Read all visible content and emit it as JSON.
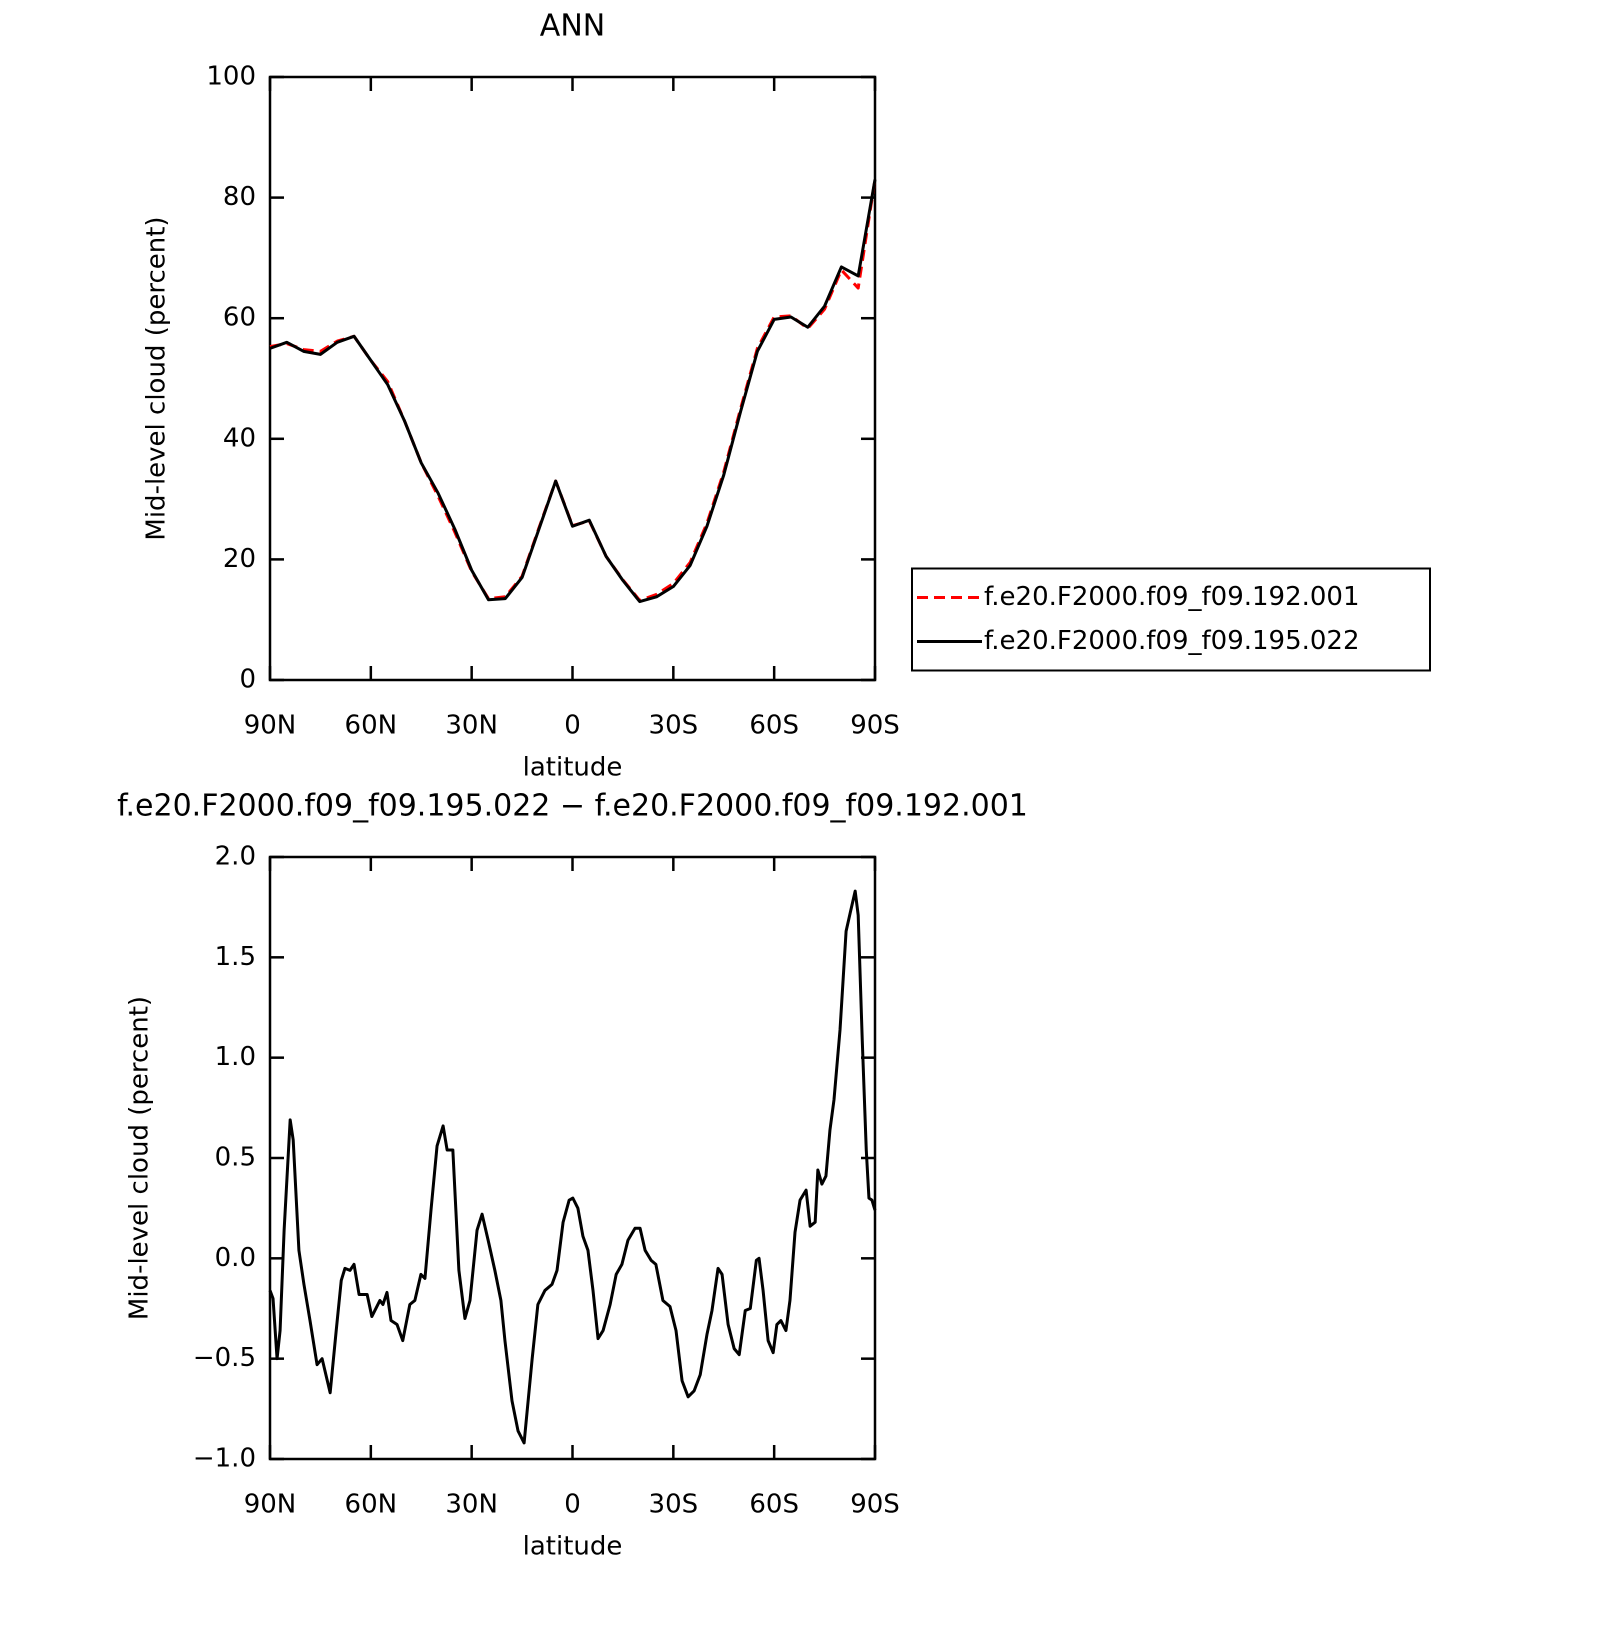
{
  "chart_data": [
    {
      "type": "line",
      "title": "ANN",
      "xlabel": "latitude",
      "ylabel": "Mid-level cloud (percent)",
      "x": [
        90,
        85,
        80,
        75,
        70,
        65,
        60,
        55,
        50,
        45,
        40,
        35,
        30,
        25,
        20,
        15,
        10,
        5,
        0,
        -5,
        -10,
        -15,
        -20,
        -25,
        -30,
        -35,
        -40,
        -45,
        -50,
        -55,
        -60,
        -65,
        -70,
        -75,
        -80,
        -85,
        -90
      ],
      "series": [
        {
          "name": "f.e20.F2000.f09_f09.192.001",
          "color": "#ff0000",
          "dashed": true,
          "values": [
            55.3,
            55.8,
            54.8,
            54.5,
            56.2,
            57,
            53,
            49.5,
            43,
            36,
            30.5,
            24.5,
            18,
            13.5,
            13.8,
            17.2,
            25.2,
            33,
            25.6,
            26.4,
            20.5,
            16.6,
            13.2,
            14.2,
            16,
            19.5,
            26,
            34.5,
            45,
            55,
            60.2,
            60.4,
            58.3,
            61.5,
            68,
            65,
            83
          ]
        },
        {
          "name": "f.e20.F2000.f09_f09.195.022",
          "color": "#000000",
          "dashed": false,
          "values": [
            55,
            56,
            54.5,
            54,
            56,
            57,
            53,
            49,
            43,
            36,
            31,
            25,
            18.2,
            13.3,
            13.5,
            17,
            25,
            33,
            25.5,
            26.5,
            20.5,
            16.5,
            13,
            13.8,
            15.5,
            19,
            25.5,
            34,
            44.5,
            54.5,
            59.8,
            60.2,
            58.5,
            62,
            68.5,
            67,
            83
          ]
        }
      ],
      "xlim": [
        90,
        -90
      ],
      "xticks": [
        {
          "value": 90,
          "label": "90N"
        },
        {
          "value": 60,
          "label": "60N"
        },
        {
          "value": 30,
          "label": "30N"
        },
        0,
        {
          "value": -30,
          "label": "30S"
        },
        {
          "value": -60,
          "label": "60S"
        },
        {
          "value": -90,
          "label": "90S"
        }
      ],
      "ylim": [
        0,
        100
      ],
      "yticks": [
        0,
        20,
        40,
        60,
        80,
        100
      ],
      "grid": false,
      "legend": "right"
    },
    {
      "type": "line",
      "title": "f.e20.F2000.f09_f09.195.022 − f.e20.F2000.f09_f09.192.001",
      "xlabel": "latitude",
      "ylabel": "Mid-level cloud (percent)",
      "x": [
        90,
        89.1,
        87.9,
        87.0,
        85.8,
        84.0,
        83.1,
        81.4,
        79.9,
        78.1,
        76.0,
        74.5,
        72.1,
        70.3,
        68.8,
        67.7,
        66.2,
        65.0,
        63.5,
        61.1,
        59.7,
        57.3,
        56.4,
        55.2,
        54.0,
        52.2,
        50.5,
        48.4,
        46.9,
        45.1,
        43.9,
        42.1,
        40.3,
        38.5,
        37.3,
        35.6,
        33.8,
        32.0,
        30.5,
        28.4,
        26.9,
        25.1,
        23.1,
        21.3,
        20.1,
        18.0,
        16.2,
        14.4,
        12.0,
        10.3,
        8.2,
        6.1,
        4.6,
        2.8,
        1.0,
        -0.1,
        -1.6,
        -3.1,
        -4.6,
        -6.1,
        -7.6,
        -9.1,
        -11.2,
        -13.0,
        -14.7,
        -16.5,
        -18.6,
        -20.1,
        -21.6,
        -23.4,
        -24.8,
        -26.9,
        -29.0,
        -30.8,
        -32.6,
        -34.4,
        -36.2,
        -38.0,
        -40.0,
        -41.5,
        -43.3,
        -44.5,
        -46.3,
        -48.1,
        -49.6,
        -51.4,
        -52.9,
        -54.7,
        -55.5,
        -56.7,
        -58.2,
        -59.7,
        -60.8,
        -62.0,
        -63.5,
        -64.7,
        -66.2,
        -67.7,
        -69.5,
        -70.7,
        -72.2,
        -73.0,
        -74.2,
        -75.4,
        -76.6,
        -77.8,
        -79.6,
        -81.4,
        -82.6,
        -84.1,
        -85.0,
        -86.2,
        -87.4,
        -88.2,
        -89.1,
        -90
      ],
      "values": [
        -0.16,
        -0.2,
        -0.5,
        -0.36,
        0.14,
        0.69,
        0.59,
        0.04,
        -0.13,
        -0.31,
        -0.53,
        -0.5,
        -0.67,
        -0.36,
        -0.11,
        -0.05,
        -0.06,
        -0.03,
        -0.18,
        -0.18,
        -0.29,
        -0.21,
        -0.23,
        -0.17,
        -0.31,
        -0.33,
        -0.41,
        -0.23,
        -0.21,
        -0.08,
        -0.1,
        0.24,
        0.56,
        0.66,
        0.54,
        0.54,
        -0.06,
        -0.3,
        -0.21,
        0.14,
        0.22,
        0.09,
        -0.06,
        -0.21,
        -0.41,
        -0.71,
        -0.86,
        -0.92,
        -0.5,
        -0.23,
        -0.16,
        -0.13,
        -0.06,
        0.18,
        0.29,
        0.3,
        0.25,
        0.11,
        0.04,
        -0.16,
        -0.4,
        -0.36,
        -0.23,
        -0.08,
        -0.03,
        0.09,
        0.15,
        0.15,
        0.04,
        -0.01,
        -0.03,
        -0.21,
        -0.24,
        -0.36,
        -0.61,
        -0.69,
        -0.66,
        -0.58,
        -0.38,
        -0.26,
        -0.05,
        -0.08,
        -0.33,
        -0.45,
        -0.48,
        -0.26,
        -0.25,
        -0.01,
        0,
        -0.16,
        -0.41,
        -0.47,
        -0.33,
        -0.31,
        -0.36,
        -0.21,
        0.13,
        0.29,
        0.34,
        0.16,
        0.18,
        0.44,
        0.37,
        0.41,
        0.64,
        0.79,
        1.14,
        1.63,
        1.72,
        1.83,
        1.71,
        1.09,
        0.54,
        0.3,
        0.29,
        0.24
      ],
      "color": "#000000",
      "xlim": [
        90,
        -90
      ],
      "xticks": [
        {
          "value": 90,
          "label": "90N"
        },
        {
          "value": 60,
          "label": "60N"
        },
        {
          "value": 30,
          "label": "30N"
        },
        0,
        {
          "value": -30,
          "label": "30S"
        },
        {
          "value": -60,
          "label": "60S"
        },
        {
          "value": -90,
          "label": "90S"
        }
      ],
      "ylim": [
        -1,
        2
      ],
      "yticks": [
        {
          "value": -1,
          "label": "−1.0"
        },
        {
          "value": -0.5,
          "label": "−0.5"
        },
        {
          "value": 0,
          "label": "0.0"
        },
        {
          "value": 0.5,
          "label": "0.5"
        },
        {
          "value": 1,
          "label": "1.0"
        },
        {
          "value": 1.5,
          "label": "1.5"
        },
        {
          "value": 2,
          "label": "2.0"
        }
      ],
      "grid": false
    }
  ]
}
